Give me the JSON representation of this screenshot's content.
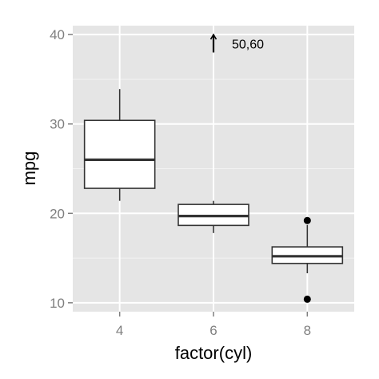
{
  "chart_data": {
    "type": "box",
    "xlabel": "factor(cyl)",
    "ylabel": "mpg",
    "categories": [
      "4",
      "6",
      "8"
    ],
    "ylim": [
      9,
      41
    ],
    "yticks": [
      10,
      20,
      30,
      40
    ],
    "ytick_labels": [
      "10",
      "20",
      "30",
      "40"
    ],
    "grid": true,
    "boxes": [
      {
        "category": "4",
        "lower_whisker": 21.4,
        "q1": 22.8,
        "median": 26.0,
        "q3": 30.4,
        "upper_whisker": 33.9,
        "outliers": []
      },
      {
        "category": "6",
        "lower_whisker": 17.8,
        "q1": 18.65,
        "median": 19.7,
        "q3": 21.0,
        "upper_whisker": 21.4,
        "outliers": []
      },
      {
        "category": "8",
        "lower_whisker": 13.3,
        "q1": 14.4,
        "median": 15.2,
        "q3": 16.25,
        "upper_whisker": 18.7,
        "outliers": [
          10.4,
          19.2
        ]
      }
    ],
    "annotation": {
      "text": "50,60",
      "category": "6",
      "y_from": 38.0,
      "y_to": 40.0,
      "arrow": "up"
    }
  }
}
